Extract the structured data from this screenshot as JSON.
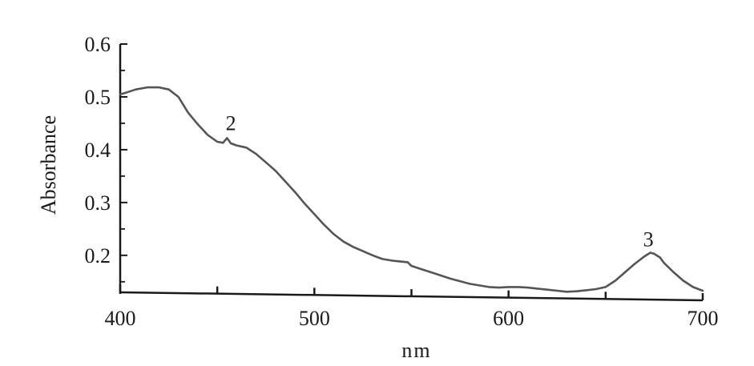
{
  "chart_data": {
    "type": "line",
    "title": "",
    "xlabel": "nm",
    "ylabel": "Absorbance",
    "xlim": [
      400,
      700
    ],
    "ylim": [
      0.13,
      0.6
    ],
    "x_ticks": [
      400,
      500,
      600,
      700
    ],
    "x_tick_labels": [
      "400",
      "500",
      "600",
      "700"
    ],
    "x_minor_ticks": [
      450,
      550,
      650
    ],
    "y_ticks": [
      0.2,
      0.3,
      0.4,
      0.5,
      0.6
    ],
    "y_tick_labels": [
      "0.2",
      "0.3",
      "0.4",
      "0.5",
      "0.6"
    ],
    "y_minor_ticks": [
      0.15,
      0.25,
      0.35,
      0.45,
      0.55
    ],
    "grid": false,
    "legend": "none",
    "line_color": "#555555",
    "series": [
      {
        "x": [
          400,
          403,
          408,
          414,
          420,
          425,
          430,
          435,
          440,
          445,
          450,
          453,
          455,
          457,
          460,
          465,
          470,
          475,
          480,
          485,
          490,
          495,
          500,
          505,
          510,
          515,
          520,
          525,
          530,
          535,
          540,
          545,
          548,
          550,
          555,
          560,
          565,
          570,
          575,
          580,
          585,
          590,
          595,
          600,
          605,
          610,
          615,
          620,
          625,
          630,
          635,
          640,
          645,
          650,
          655,
          660,
          665,
          670,
          673,
          675,
          678,
          680,
          685,
          690,
          695,
          700
        ],
        "y": [
          0.505,
          0.508,
          0.514,
          0.518,
          0.518,
          0.514,
          0.5,
          0.47,
          0.448,
          0.428,
          0.415,
          0.413,
          0.422,
          0.412,
          0.408,
          0.404,
          0.392,
          0.376,
          0.36,
          0.34,
          0.32,
          0.298,
          0.278,
          0.258,
          0.24,
          0.226,
          0.216,
          0.208,
          0.2,
          0.193,
          0.19,
          0.188,
          0.187,
          0.18,
          0.174,
          0.168,
          0.162,
          0.156,
          0.151,
          0.146,
          0.143,
          0.14,
          0.139,
          0.14,
          0.14,
          0.139,
          0.137,
          0.135,
          0.133,
          0.131,
          0.132,
          0.134,
          0.136,
          0.14,
          0.152,
          0.168,
          0.184,
          0.198,
          0.205,
          0.203,
          0.196,
          0.186,
          0.168,
          0.152,
          0.14,
          0.133
        ]
      }
    ],
    "annotations": [
      {
        "text": "2",
        "x": 457,
        "y": 0.437
      },
      {
        "text": "3",
        "x": 672,
        "y": 0.217
      }
    ]
  }
}
